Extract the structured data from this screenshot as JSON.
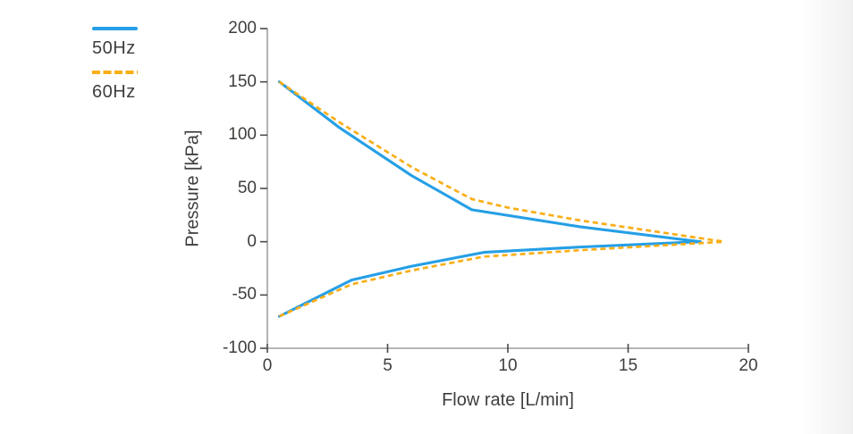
{
  "legend": {
    "items": [
      {
        "label": "50Hz",
        "color": "#259fe6",
        "style": "solid"
      },
      {
        "label": "60Hz",
        "color": "#f9ae17",
        "style": "dashed"
      }
    ]
  },
  "chart_data": {
    "type": "line",
    "title": "",
    "xlabel": "Flow rate [L/min]",
    "ylabel": "Pressure [kPa]",
    "xlim": [
      0,
      20
    ],
    "ylim": [
      -100,
      200
    ],
    "xticks": [
      0,
      5,
      10,
      15,
      20
    ],
    "yticks": [
      200,
      150,
      100,
      50,
      0,
      -50,
      -100
    ],
    "grid": false,
    "legend_position": "outside-top-left",
    "axis_color": "#8a8a89",
    "tick_color": "#4a4a49",
    "series": [
      {
        "name": "50Hz",
        "color": "#259fe6",
        "dash": "solid",
        "branches": [
          {
            "branch": "upper",
            "points": [
              [
                0.5,
                150
              ],
              [
                3,
                107
              ],
              [
                6,
                62
              ],
              [
                8.5,
                30
              ],
              [
                13,
                14
              ],
              [
                18,
                0
              ]
            ]
          },
          {
            "branch": "lower",
            "points": [
              [
                0.5,
                -70
              ],
              [
                3.5,
                -36
              ],
              [
                6,
                -23
              ],
              [
                9,
                -10
              ],
              [
                13,
                -5
              ],
              [
                18,
                0
              ]
            ]
          }
        ]
      },
      {
        "name": "60Hz",
        "color": "#f9ae17",
        "dash": "dashed",
        "branches": [
          {
            "branch": "upper",
            "points": [
              [
                0.5,
                150
              ],
              [
                3,
                112
              ],
              [
                6,
                70
              ],
              [
                8.5,
                40
              ],
              [
                10,
                32
              ],
              [
                13,
                20
              ],
              [
                19,
                0
              ]
            ]
          },
          {
            "branch": "lower",
            "points": [
              [
                0.5,
                -70
              ],
              [
                3.5,
                -40
              ],
              [
                6,
                -27
              ],
              [
                9,
                -14
              ],
              [
                13,
                -8
              ],
              [
                19,
                0
              ]
            ]
          }
        ]
      }
    ]
  }
}
